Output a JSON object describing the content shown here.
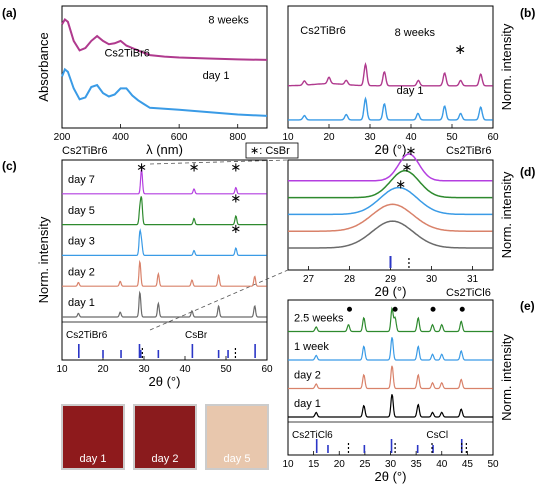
{
  "figure": {
    "panel_letters": [
      "(a)",
      "(b)",
      "(c)",
      "(d)",
      "(e)"
    ],
    "top_left_caption": "Cs2TiBr6",
    "csbr_legend": "∗: CsBr",
    "mid_right_caption": "Cs2TiBr6",
    "d_bottom_caption": "Cs2TiCl6"
  },
  "photos": {
    "labels": [
      "day 1",
      "day 2",
      "day 5"
    ],
    "colors": [
      "#8e1a1c",
      "#8a1b1d",
      "#e8c7ad"
    ]
  },
  "chart_data": [
    {
      "id": "a",
      "type": "line",
      "xlabel": "λ (nm)",
      "ylabel": "Absorbance",
      "xlim": [
        200,
        900
      ],
      "xticks": [
        200,
        400,
        600,
        800
      ],
      "annotation": "Cs2TiBr6",
      "series": [
        {
          "name": "8 weeks",
          "color": "#b03a8e",
          "x": [
            200,
            210,
            220,
            240,
            260,
            280,
            300,
            320,
            340,
            360,
            380,
            400,
            420,
            440,
            460,
            480,
            500,
            550,
            600,
            700,
            800,
            900
          ],
          "y": [
            2.4,
            2.5,
            2.45,
            2.05,
            1.85,
            1.9,
            2.05,
            2.15,
            2.05,
            1.98,
            2.0,
            2.05,
            1.95,
            1.9,
            1.85,
            1.8,
            1.75,
            1.72,
            1.7,
            1.68,
            1.66,
            1.65
          ]
        },
        {
          "name": "day 1",
          "color": "#3a9be6",
          "x": [
            200,
            210,
            220,
            240,
            260,
            280,
            300,
            320,
            340,
            360,
            380,
            400,
            420,
            440,
            460,
            480,
            500,
            550,
            600,
            700,
            800,
            900
          ],
          "y": [
            1.3,
            1.45,
            1.4,
            1.05,
            0.82,
            0.86,
            1.08,
            1.12,
            0.95,
            0.88,
            0.92,
            1.05,
            1.05,
            0.9,
            0.8,
            0.72,
            0.64,
            0.62,
            0.6,
            0.55,
            0.5,
            0.47
          ]
        }
      ]
    },
    {
      "id": "b",
      "type": "line",
      "xlabel": "2θ (°)",
      "ylabel": "Norm. intensity",
      "xlim": [
        10,
        60
      ],
      "xticks": [
        10,
        20,
        30,
        40,
        50,
        60
      ],
      "annotation": "Cs2TiBr6",
      "marker_text": "∗",
      "marker_x": 52,
      "series": [
        {
          "name": "8 weeks",
          "color": "#b03a8e",
          "peaks": [
            [
              14.0,
              0.2
            ],
            [
              20.0,
              0.3
            ],
            [
              24.2,
              0.2
            ],
            [
              28.9,
              1.0
            ],
            [
              33.5,
              0.65
            ],
            [
              41.8,
              0.25
            ],
            [
              48.2,
              0.6
            ],
            [
              52.1,
              0.25
            ],
            [
              57.0,
              0.55
            ]
          ]
        },
        {
          "name": "day 1",
          "color": "#3a9be6",
          "peaks": [
            [
              14.0,
              0.2
            ],
            [
              24.2,
              0.25
            ],
            [
              28.9,
              1.0
            ],
            [
              33.5,
              0.75
            ],
            [
              41.7,
              0.3
            ],
            [
              48.2,
              0.65
            ],
            [
              52.1,
              0.3
            ],
            [
              57.0,
              0.6
            ]
          ]
        }
      ]
    },
    {
      "id": "c",
      "type": "line",
      "xlabel": "2θ (°)",
      "ylabel": "Norm. intensity",
      "xlim": [
        10,
        60
      ],
      "xticks": [
        10,
        20,
        30,
        40,
        50,
        60
      ],
      "series": [
        {
          "name": "day 7",
          "color": "#b43fe0",
          "peaks": [
            [
              29.4,
              1.0
            ],
            [
              42.2,
              0.2
            ],
            [
              52.4,
              0.25
            ]
          ],
          "stars": [
            29.4,
            42.2,
            52.4
          ]
        },
        {
          "name": "day 5",
          "color": "#2e8a2e",
          "peaks": [
            [
              29.0,
              0.6
            ],
            [
              29.4,
              1.0
            ],
            [
              42.2,
              0.25
            ],
            [
              52.4,
              0.35
            ]
          ],
          "stars": [
            52.4
          ]
        },
        {
          "name": "day 3",
          "color": "#3a9be6",
          "peaks": [
            [
              29.0,
              0.9
            ],
            [
              29.4,
              0.5
            ],
            [
              42.2,
              0.2
            ],
            [
              52.4,
              0.3
            ]
          ],
          "stars": [
            52.4
          ]
        },
        {
          "name": "day 2",
          "color": "#d9826a",
          "peaks": [
            [
              14.0,
              0.15
            ],
            [
              24.2,
              0.2
            ],
            [
              29.0,
              1.0
            ],
            [
              33.5,
              0.5
            ],
            [
              41.7,
              0.25
            ],
            [
              48.2,
              0.45
            ],
            [
              57.0,
              0.4
            ]
          ]
        },
        {
          "name": "day 1",
          "color": "#6b6b6b",
          "peaks": [
            [
              14.0,
              0.15
            ],
            [
              24.2,
              0.2
            ],
            [
              29.0,
              1.0
            ],
            [
              33.5,
              0.55
            ],
            [
              41.7,
              0.25
            ],
            [
              48.2,
              0.45
            ],
            [
              57.0,
              0.45
            ]
          ]
        }
      ],
      "reference_labels": [
        "Cs2TiBr6",
        "CsBr"
      ],
      "reference_sticks": [
        14.1,
        20.0,
        24.4,
        28.9,
        29.2,
        33.5,
        41.8,
        48.2,
        50.5,
        57.1
      ],
      "reference_dotted": [
        29.6,
        52.3
      ]
    },
    {
      "id": "d",
      "type": "line",
      "xlabel": "2θ (°)",
      "ylabel": "Norm. intensity",
      "xlim": [
        26.5,
        31.5
      ],
      "xticks": [
        27,
        28,
        29,
        30,
        31
      ],
      "series": [
        {
          "name": "day 7",
          "color": "#b43fe0",
          "center": 29.45,
          "width": 0.25,
          "star": true
        },
        {
          "name": "day 5",
          "color": "#2e8a2e",
          "center": 29.35,
          "width": 0.35,
          "star": true
        },
        {
          "name": "day 3",
          "color": "#3a9be6",
          "center": 29.2,
          "width": 0.45,
          "star": true
        },
        {
          "name": "day 2",
          "color": "#d9826a",
          "center": 29.05,
          "width": 0.5,
          "star": false
        },
        {
          "name": "day 1",
          "color": "#6b6b6b",
          "center": 29.05,
          "width": 0.5,
          "star": false
        }
      ],
      "reference_sticks": [
        29.0
      ],
      "reference_dotted": [
        29.45
      ]
    },
    {
      "id": "e",
      "type": "line",
      "xlabel": "2θ (°)",
      "ylabel": "Norm. intensity",
      "xlim": [
        10,
        50
      ],
      "xticks": [
        10,
        15,
        20,
        25,
        30,
        35,
        40,
        45,
        50
      ],
      "series": [
        {
          "name": "2.5 weeks",
          "color": "#2e8a2e",
          "peaks": [
            [
              15.5,
              0.2
            ],
            [
              21.8,
              0.3
            ],
            [
              24.8,
              0.6
            ],
            [
              30.3,
              1.0
            ],
            [
              30.9,
              0.6
            ],
            [
              35.4,
              0.6
            ],
            [
              38.2,
              0.3
            ],
            [
              40.0,
              0.3
            ],
            [
              43.8,
              0.45
            ]
          ],
          "dots": [
            22.0,
            30.9,
            38.3,
            44.0
          ]
        },
        {
          "name": "1 week",
          "color": "#3a9be6",
          "peaks": [
            [
              15.5,
              0.2
            ],
            [
              24.8,
              0.6
            ],
            [
              30.3,
              1.0
            ],
            [
              35.4,
              0.6
            ],
            [
              38.2,
              0.25
            ],
            [
              40.0,
              0.25
            ],
            [
              43.8,
              0.4
            ]
          ]
        },
        {
          "name": "day 2",
          "color": "#d9826a",
          "peaks": [
            [
              15.5,
              0.2
            ],
            [
              24.8,
              0.6
            ],
            [
              30.3,
              1.0
            ],
            [
              35.4,
              0.6
            ],
            [
              38.2,
              0.25
            ],
            [
              40.0,
              0.25
            ],
            [
              43.8,
              0.4
            ]
          ]
        },
        {
          "name": "day 1",
          "color": "#000000",
          "peaks": [
            [
              15.5,
              0.2
            ],
            [
              24.8,
              0.5
            ],
            [
              30.3,
              1.0
            ],
            [
              35.4,
              0.55
            ],
            [
              38.2,
              0.2
            ],
            [
              40.0,
              0.2
            ],
            [
              43.8,
              0.35
            ]
          ]
        }
      ],
      "reference_labels": [
        "Cs2TiCl6",
        "CsCl"
      ],
      "reference_sticks": [
        15.6,
        17.8,
        24.9,
        30.2,
        35.3,
        38.3,
        43.9
      ],
      "reference_dotted": [
        21.8,
        30.9,
        38.1,
        43.9,
        44.8
      ]
    }
  ]
}
